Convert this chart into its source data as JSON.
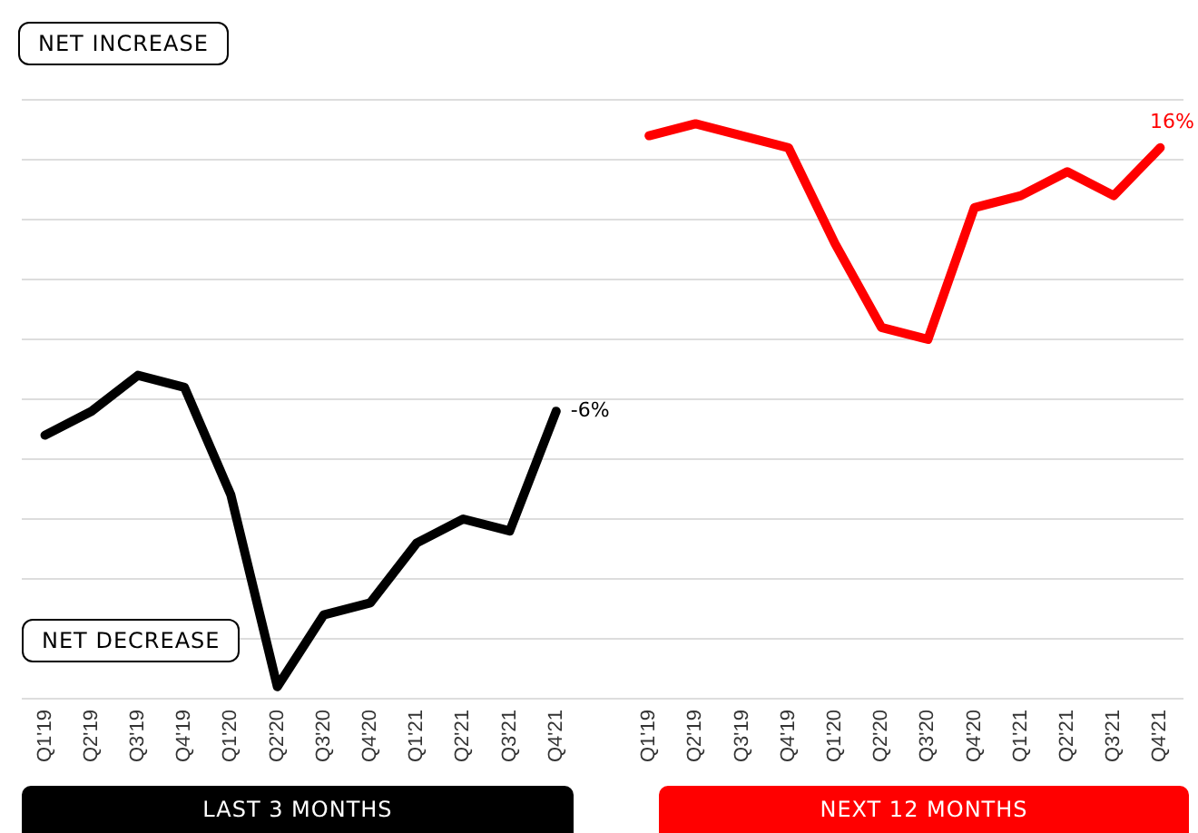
{
  "chart_data": {
    "type": "line",
    "tick_labels": "x",
    "grid": "y",
    "legend": "bottom",
    "marker": "none",
    "line_style": "solid",
    "categories": [
      "Q1'19",
      "Q2'19",
      "Q3'19",
      "Q4'19",
      "Q1'20",
      "Q2'20",
      "Q3'20",
      "Q4'20",
      "Q1'21",
      "Q2'21",
      "Q3'21",
      "Q4'21",
      null,
      "Q1'19",
      "Q2'19",
      "Q3'19",
      "Q4'19",
      "Q1'20",
      "Q2'20",
      "Q3'20",
      "Q4'20",
      "Q1'21",
      "Q2'21",
      "Q3'21",
      "Q4'21"
    ],
    "series": [
      {
        "name": "LAST 3 MONTHS",
        "color": "#000000",
        "values": [
          -8,
          -6,
          -3,
          -4,
          -13,
          -29,
          -23,
          -22,
          -17,
          -15,
          -16,
          -6,
          null,
          null,
          null,
          null,
          null,
          null,
          null,
          null,
          null,
          null,
          null,
          null,
          null
        ],
        "value_labels": [
          null,
          null,
          null,
          null,
          null,
          null,
          null,
          null,
          null,
          null,
          null,
          "-6%",
          null,
          null,
          null,
          null,
          null,
          null,
          null,
          null,
          null,
          null,
          null,
          null,
          null
        ]
      },
      {
        "name": "NEXT 12 MONTHS",
        "color": "#ff0000",
        "values": [
          null,
          null,
          null,
          null,
          null,
          null,
          null,
          null,
          null,
          null,
          null,
          null,
          null,
          17,
          18,
          17,
          16,
          8,
          1,
          0,
          11,
          12,
          14,
          12,
          16
        ],
        "value_labels": [
          null,
          null,
          null,
          null,
          null,
          null,
          null,
          null,
          null,
          null,
          null,
          null,
          null,
          null,
          null,
          null,
          null,
          null,
          null,
          null,
          null,
          null,
          null,
          null,
          "16%"
        ]
      }
    ],
    "annotations": [
      "NET INCREASE",
      "NET DECREASE"
    ]
  }
}
